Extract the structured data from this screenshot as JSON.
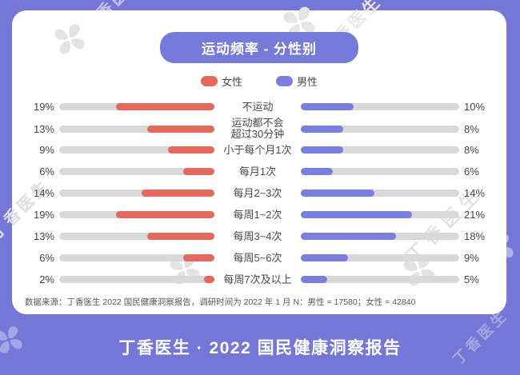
{
  "title_badge": {
    "label": "运动频率 - 分性别"
  },
  "legend": {
    "items": [
      {
        "label": "女性",
        "color": "#E5685E"
      },
      {
        "label": "男性",
        "color": "#7A7EDD"
      }
    ]
  },
  "chart_data": {
    "type": "bar",
    "variant": "tornado-dual-sided",
    "title": "运动频率 - 分性别",
    "unit": "%",
    "axis_max": 30,
    "grid": false,
    "legend_position": "top-center",
    "categories": [
      "不运动",
      "运动都不会\n超过30分钟",
      "小于每个月1次",
      "每月1次",
      "每月2~3次",
      "每周1~2次",
      "每周3~4次",
      "每周5~6次",
      "每周7次及以上"
    ],
    "series": [
      {
        "name": "女性",
        "side": "left",
        "color": "#E5685E",
        "values": [
          19,
          13,
          9,
          6,
          14,
          19,
          13,
          6,
          2
        ]
      },
      {
        "name": "男性",
        "side": "right",
        "color": "#7A7EDD",
        "values": [
          10,
          8,
          8,
          6,
          14,
          21,
          18,
          9,
          5
        ]
      }
    ]
  },
  "footnote": "数据来源：丁香医生 2022 国民健康洞察报告，调研时间为 2022 年 1 月 N：男性 = 17580；女性 = 42840",
  "footer": {
    "title": "丁香医生 · 2022 国民健康洞察报告"
  },
  "watermark": {
    "text": "丁香医生",
    "icon": "clover-flower-icon"
  },
  "colors": {
    "background": "#7577D7",
    "card": "#FFFFFF",
    "badge": "#767ADA",
    "track": "#D9D9D9",
    "female": "#E5685E",
    "male": "#7A7EDD",
    "text": "#4A4A4A",
    "footnote_text": "#595959"
  }
}
